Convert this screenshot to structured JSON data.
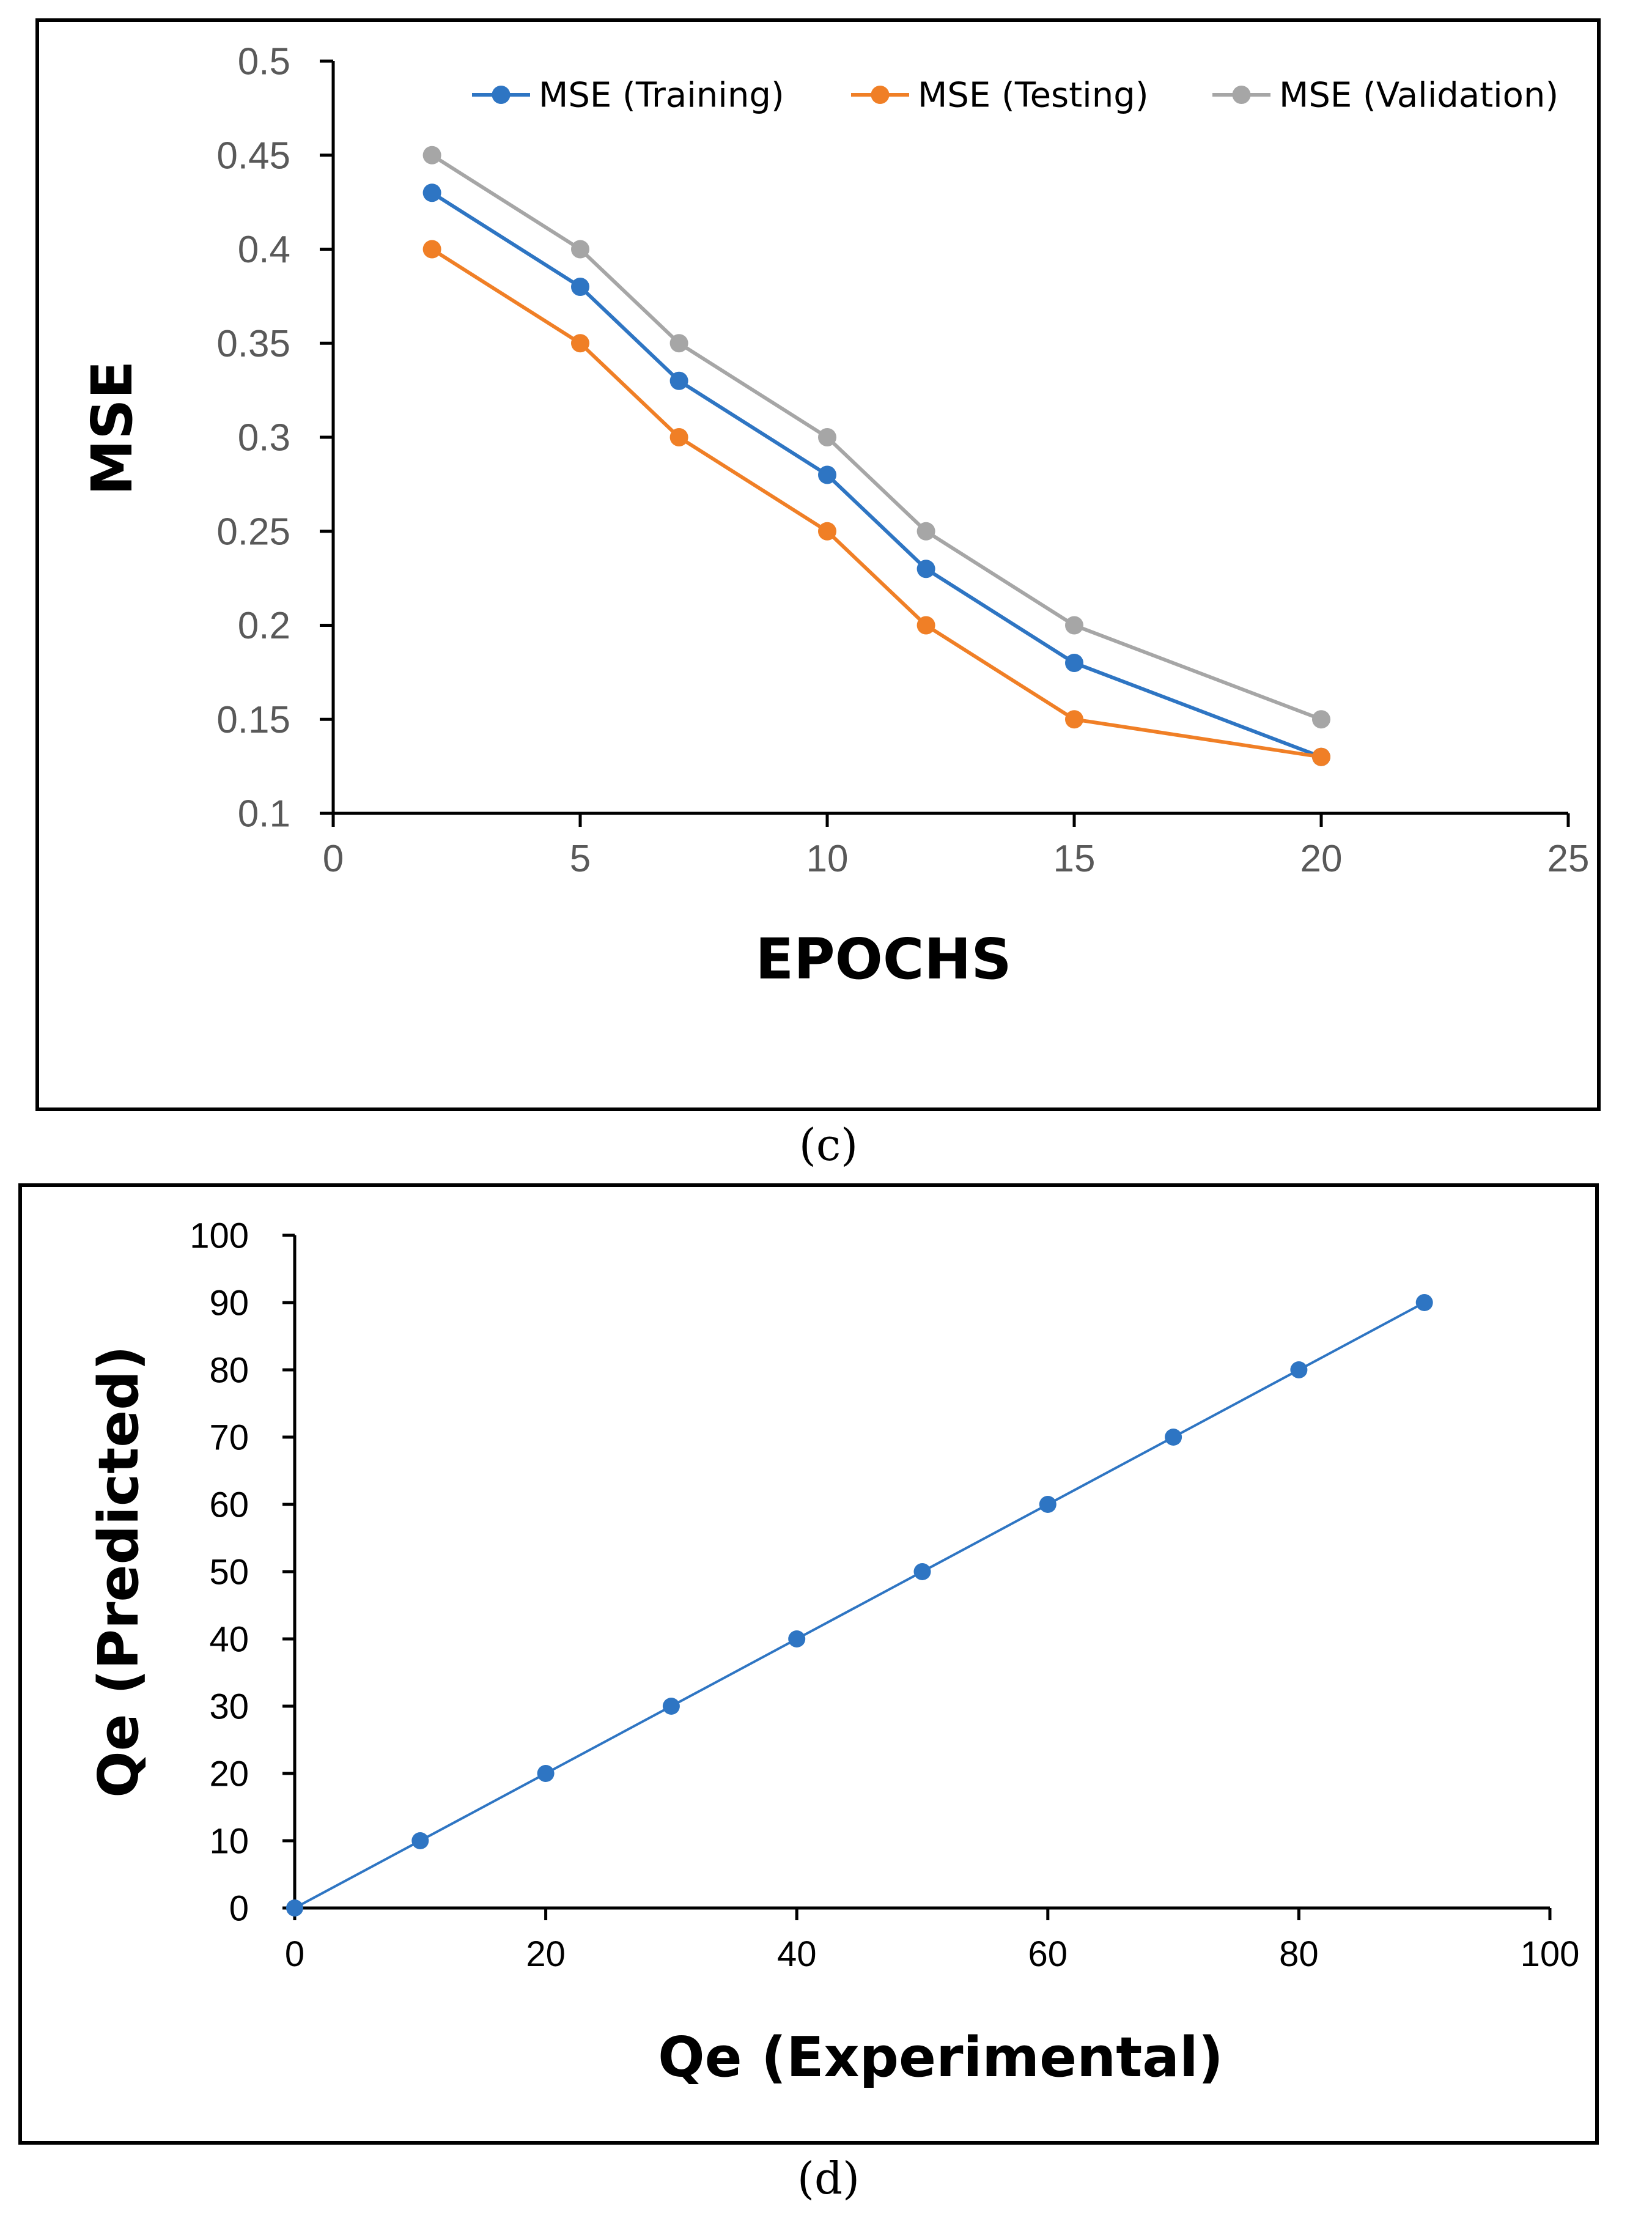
{
  "chart_data": [
    {
      "type": "line",
      "panel": "c",
      "xlabel": "EPOCHS",
      "ylabel": "MSE",
      "xlim": [
        0,
        25
      ],
      "ylim": [
        0.1,
        0.5
      ],
      "xticks": [
        0,
        5,
        10,
        15,
        20,
        25
      ],
      "xtick_labels": [
        "0",
        "5",
        "10",
        "15",
        "20",
        "25"
      ],
      "yticks": [
        0.1,
        0.15,
        0.2,
        0.25,
        0.3,
        0.35,
        0.4,
        0.45,
        0.5
      ],
      "ytick_labels": [
        "0.1",
        "0.15",
        "0.2",
        "0.25",
        "0.3",
        "0.35",
        "0.4",
        "0.45",
        "0.5"
      ],
      "legend_position": "top",
      "grid": false,
      "series": [
        {
          "name": "MSE (Training)",
          "color": "#2e75c3",
          "x": [
            2,
            5,
            7,
            10,
            12,
            15,
            20
          ],
          "values": [
            0.43,
            0.38,
            0.33,
            0.28,
            0.23,
            0.18,
            0.13
          ]
        },
        {
          "name": "MSE (Testing)",
          "color": "#f07f26",
          "x": [
            2,
            5,
            7,
            10,
            12,
            15,
            20
          ],
          "values": [
            0.4,
            0.35,
            0.3,
            0.25,
            0.2,
            0.15,
            0.13
          ]
        },
        {
          "name": "MSE (Validation)",
          "color": "#a6a6a6",
          "x": [
            2,
            5,
            7,
            10,
            12,
            15,
            20
          ],
          "values": [
            0.45,
            0.4,
            0.35,
            0.3,
            0.25,
            0.2,
            0.15
          ]
        }
      ]
    },
    {
      "type": "line",
      "panel": "d",
      "xlabel": "Qe (Experimental)",
      "ylabel": "Qe (Predicted)",
      "xlim": [
        0,
        100
      ],
      "ylim": [
        0,
        100
      ],
      "xticks": [
        0,
        20,
        40,
        60,
        80,
        100
      ],
      "xtick_labels": [
        "0",
        "20",
        "40",
        "60",
        "80",
        "100"
      ],
      "yticks": [
        0,
        10,
        20,
        30,
        40,
        50,
        60,
        70,
        80,
        90,
        100
      ],
      "ytick_labels": [
        "0",
        "10",
        "20",
        "30",
        "40",
        "50",
        "60",
        "70",
        "80",
        "90",
        "100"
      ],
      "legend_position": "none",
      "grid": false,
      "series": [
        {
          "name": "Qe",
          "color": "#2e75c3",
          "x": [
            0,
            10,
            20,
            30,
            40,
            50,
            60,
            70,
            80,
            90
          ],
          "values": [
            0,
            10,
            20,
            30,
            40,
            50,
            60,
            70,
            80,
            90
          ]
        }
      ]
    }
  ],
  "captions": {
    "c": "(c)",
    "d": "(d)"
  }
}
